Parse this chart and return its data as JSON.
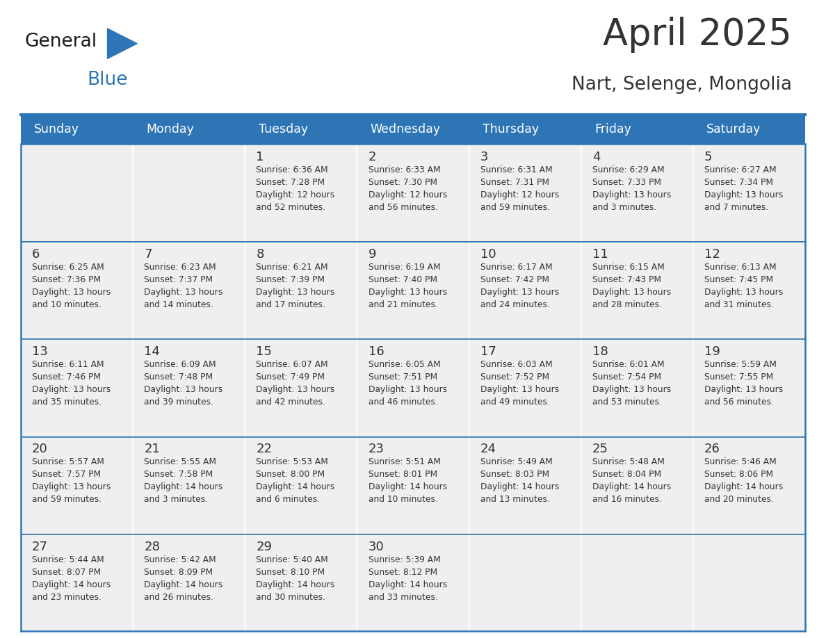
{
  "title": "April 2025",
  "subtitle": "Nart, Selenge, Mongolia",
  "header_bg": "#2E75B6",
  "header_text_color": "#FFFFFF",
  "cell_bg": "#EFEFEF",
  "row_divider_color": "#2E75B6",
  "text_color": "#333333",
  "days_of_week": [
    "Sunday",
    "Monday",
    "Tuesday",
    "Wednesday",
    "Thursday",
    "Friday",
    "Saturday"
  ],
  "calendar": [
    [
      {
        "day": "",
        "info": ""
      },
      {
        "day": "",
        "info": ""
      },
      {
        "day": "1",
        "info": "Sunrise: 6:36 AM\nSunset: 7:28 PM\nDaylight: 12 hours\nand 52 minutes."
      },
      {
        "day": "2",
        "info": "Sunrise: 6:33 AM\nSunset: 7:30 PM\nDaylight: 12 hours\nand 56 minutes."
      },
      {
        "day": "3",
        "info": "Sunrise: 6:31 AM\nSunset: 7:31 PM\nDaylight: 12 hours\nand 59 minutes."
      },
      {
        "day": "4",
        "info": "Sunrise: 6:29 AM\nSunset: 7:33 PM\nDaylight: 13 hours\nand 3 minutes."
      },
      {
        "day": "5",
        "info": "Sunrise: 6:27 AM\nSunset: 7:34 PM\nDaylight: 13 hours\nand 7 minutes."
      }
    ],
    [
      {
        "day": "6",
        "info": "Sunrise: 6:25 AM\nSunset: 7:36 PM\nDaylight: 13 hours\nand 10 minutes."
      },
      {
        "day": "7",
        "info": "Sunrise: 6:23 AM\nSunset: 7:37 PM\nDaylight: 13 hours\nand 14 minutes."
      },
      {
        "day": "8",
        "info": "Sunrise: 6:21 AM\nSunset: 7:39 PM\nDaylight: 13 hours\nand 17 minutes."
      },
      {
        "day": "9",
        "info": "Sunrise: 6:19 AM\nSunset: 7:40 PM\nDaylight: 13 hours\nand 21 minutes."
      },
      {
        "day": "10",
        "info": "Sunrise: 6:17 AM\nSunset: 7:42 PM\nDaylight: 13 hours\nand 24 minutes."
      },
      {
        "day": "11",
        "info": "Sunrise: 6:15 AM\nSunset: 7:43 PM\nDaylight: 13 hours\nand 28 minutes."
      },
      {
        "day": "12",
        "info": "Sunrise: 6:13 AM\nSunset: 7:45 PM\nDaylight: 13 hours\nand 31 minutes."
      }
    ],
    [
      {
        "day": "13",
        "info": "Sunrise: 6:11 AM\nSunset: 7:46 PM\nDaylight: 13 hours\nand 35 minutes."
      },
      {
        "day": "14",
        "info": "Sunrise: 6:09 AM\nSunset: 7:48 PM\nDaylight: 13 hours\nand 39 minutes."
      },
      {
        "day": "15",
        "info": "Sunrise: 6:07 AM\nSunset: 7:49 PM\nDaylight: 13 hours\nand 42 minutes."
      },
      {
        "day": "16",
        "info": "Sunrise: 6:05 AM\nSunset: 7:51 PM\nDaylight: 13 hours\nand 46 minutes."
      },
      {
        "day": "17",
        "info": "Sunrise: 6:03 AM\nSunset: 7:52 PM\nDaylight: 13 hours\nand 49 minutes."
      },
      {
        "day": "18",
        "info": "Sunrise: 6:01 AM\nSunset: 7:54 PM\nDaylight: 13 hours\nand 53 minutes."
      },
      {
        "day": "19",
        "info": "Sunrise: 5:59 AM\nSunset: 7:55 PM\nDaylight: 13 hours\nand 56 minutes."
      }
    ],
    [
      {
        "day": "20",
        "info": "Sunrise: 5:57 AM\nSunset: 7:57 PM\nDaylight: 13 hours\nand 59 minutes."
      },
      {
        "day": "21",
        "info": "Sunrise: 5:55 AM\nSunset: 7:58 PM\nDaylight: 14 hours\nand 3 minutes."
      },
      {
        "day": "22",
        "info": "Sunrise: 5:53 AM\nSunset: 8:00 PM\nDaylight: 14 hours\nand 6 minutes."
      },
      {
        "day": "23",
        "info": "Sunrise: 5:51 AM\nSunset: 8:01 PM\nDaylight: 14 hours\nand 10 minutes."
      },
      {
        "day": "24",
        "info": "Sunrise: 5:49 AM\nSunset: 8:03 PM\nDaylight: 14 hours\nand 13 minutes."
      },
      {
        "day": "25",
        "info": "Sunrise: 5:48 AM\nSunset: 8:04 PM\nDaylight: 14 hours\nand 16 minutes."
      },
      {
        "day": "26",
        "info": "Sunrise: 5:46 AM\nSunset: 8:06 PM\nDaylight: 14 hours\nand 20 minutes."
      }
    ],
    [
      {
        "day": "27",
        "info": "Sunrise: 5:44 AM\nSunset: 8:07 PM\nDaylight: 14 hours\nand 23 minutes."
      },
      {
        "day": "28",
        "info": "Sunrise: 5:42 AM\nSunset: 8:09 PM\nDaylight: 14 hours\nand 26 minutes."
      },
      {
        "day": "29",
        "info": "Sunrise: 5:40 AM\nSunset: 8:10 PM\nDaylight: 14 hours\nand 30 minutes."
      },
      {
        "day": "30",
        "info": "Sunrise: 5:39 AM\nSunset: 8:12 PM\nDaylight: 14 hours\nand 33 minutes."
      },
      {
        "day": "",
        "info": ""
      },
      {
        "day": "",
        "info": ""
      },
      {
        "day": "",
        "info": ""
      }
    ]
  ],
  "logo_general_color": "#1a1a1a",
  "logo_blue_color": "#2E75B6",
  "figsize": [
    11.88,
    9.18
  ],
  "dpi": 100
}
